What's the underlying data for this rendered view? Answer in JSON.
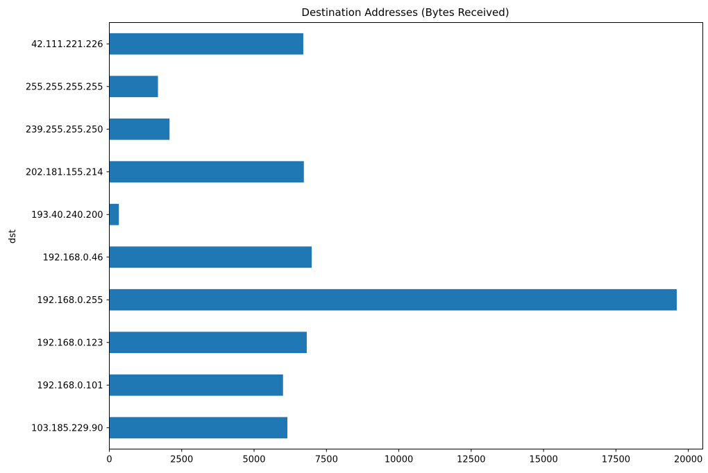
{
  "chart_data": {
    "type": "bar",
    "orientation": "horizontal",
    "title": "Destination Addresses (Bytes Received)",
    "xlabel": "",
    "ylabel": "dst",
    "xlim": [
      0,
      20500
    ],
    "xticks": [
      0,
      2500,
      5000,
      7500,
      10000,
      12500,
      15000,
      17500,
      20000
    ],
    "categories": [
      "103.185.229.90",
      "192.168.0.101",
      "192.168.0.123",
      "192.168.0.255",
      "192.168.0.46",
      "193.40.240.200",
      "202.181.155.214",
      "239.255.255.250",
      "255.255.255.255",
      "42.111.221.226"
    ],
    "values": [
      6150,
      6000,
      6820,
      19600,
      6990,
      330,
      6720,
      2080,
      1680,
      6700
    ],
    "grid": false,
    "legend": "none"
  },
  "colors": {
    "bar": "#1f77b4",
    "axis": "#000000",
    "background": "#ffffff"
  }
}
